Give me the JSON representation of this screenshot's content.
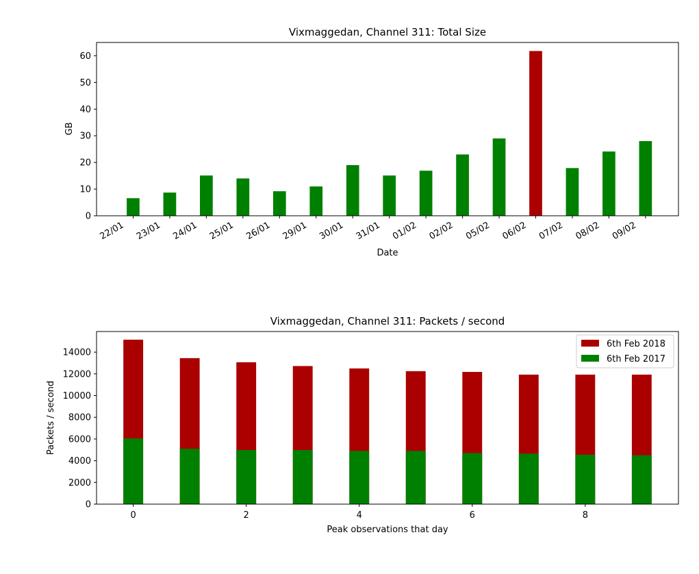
{
  "chart_data": [
    {
      "type": "bar",
      "title": "Vixmaggedan, Channel 311: Total Size",
      "xlabel": "Date",
      "ylabel": "GB",
      "ylim": [
        0,
        65
      ],
      "yticks": [
        0,
        10,
        20,
        30,
        40,
        50,
        60
      ],
      "categories": [
        "22/01",
        "23/01",
        "24/01",
        "25/01",
        "26/01",
        "29/01",
        "30/01",
        "31/01",
        "01/02",
        "02/02",
        "05/02",
        "06/02",
        "07/02",
        "08/02",
        "09/02"
      ],
      "values": [
        6.6,
        8.7,
        15.1,
        14.0,
        9.2,
        11.0,
        19.0,
        15.1,
        16.9,
        23.0,
        29.0,
        61.8,
        17.9,
        24.1,
        28.0
      ],
      "highlight_index": 11,
      "colors": {
        "normal": "#008000",
        "highlight": "#aa0000"
      },
      "grid": false
    },
    {
      "type": "bar",
      "title": "Vixmaggedan, Channel 311: Packets / second",
      "xlabel": "Peak observations that day",
      "ylabel": "Packets / second",
      "ylim": [
        0,
        15900
      ],
      "xlim": [
        -0.65,
        9.65
      ],
      "yticks": [
        0,
        2000,
        4000,
        6000,
        8000,
        10000,
        12000,
        14000
      ],
      "xticks": [
        0,
        2,
        4,
        6,
        8
      ],
      "x": [
        0,
        1,
        2,
        3,
        4,
        5,
        6,
        7,
        8,
        9
      ],
      "series": [
        {
          "name": "6th Feb 2018",
          "color": "#aa0000",
          "values": [
            15150,
            13450,
            13070,
            12720,
            12500,
            12250,
            12180,
            11930,
            11930,
            11930
          ]
        },
        {
          "name": "6th Feb 2017",
          "color": "#008000",
          "values": [
            6050,
            5100,
            4980,
            4980,
            4900,
            4900,
            4700,
            4650,
            4550,
            4500
          ]
        }
      ],
      "legend": "top-right",
      "grid": false
    }
  ]
}
